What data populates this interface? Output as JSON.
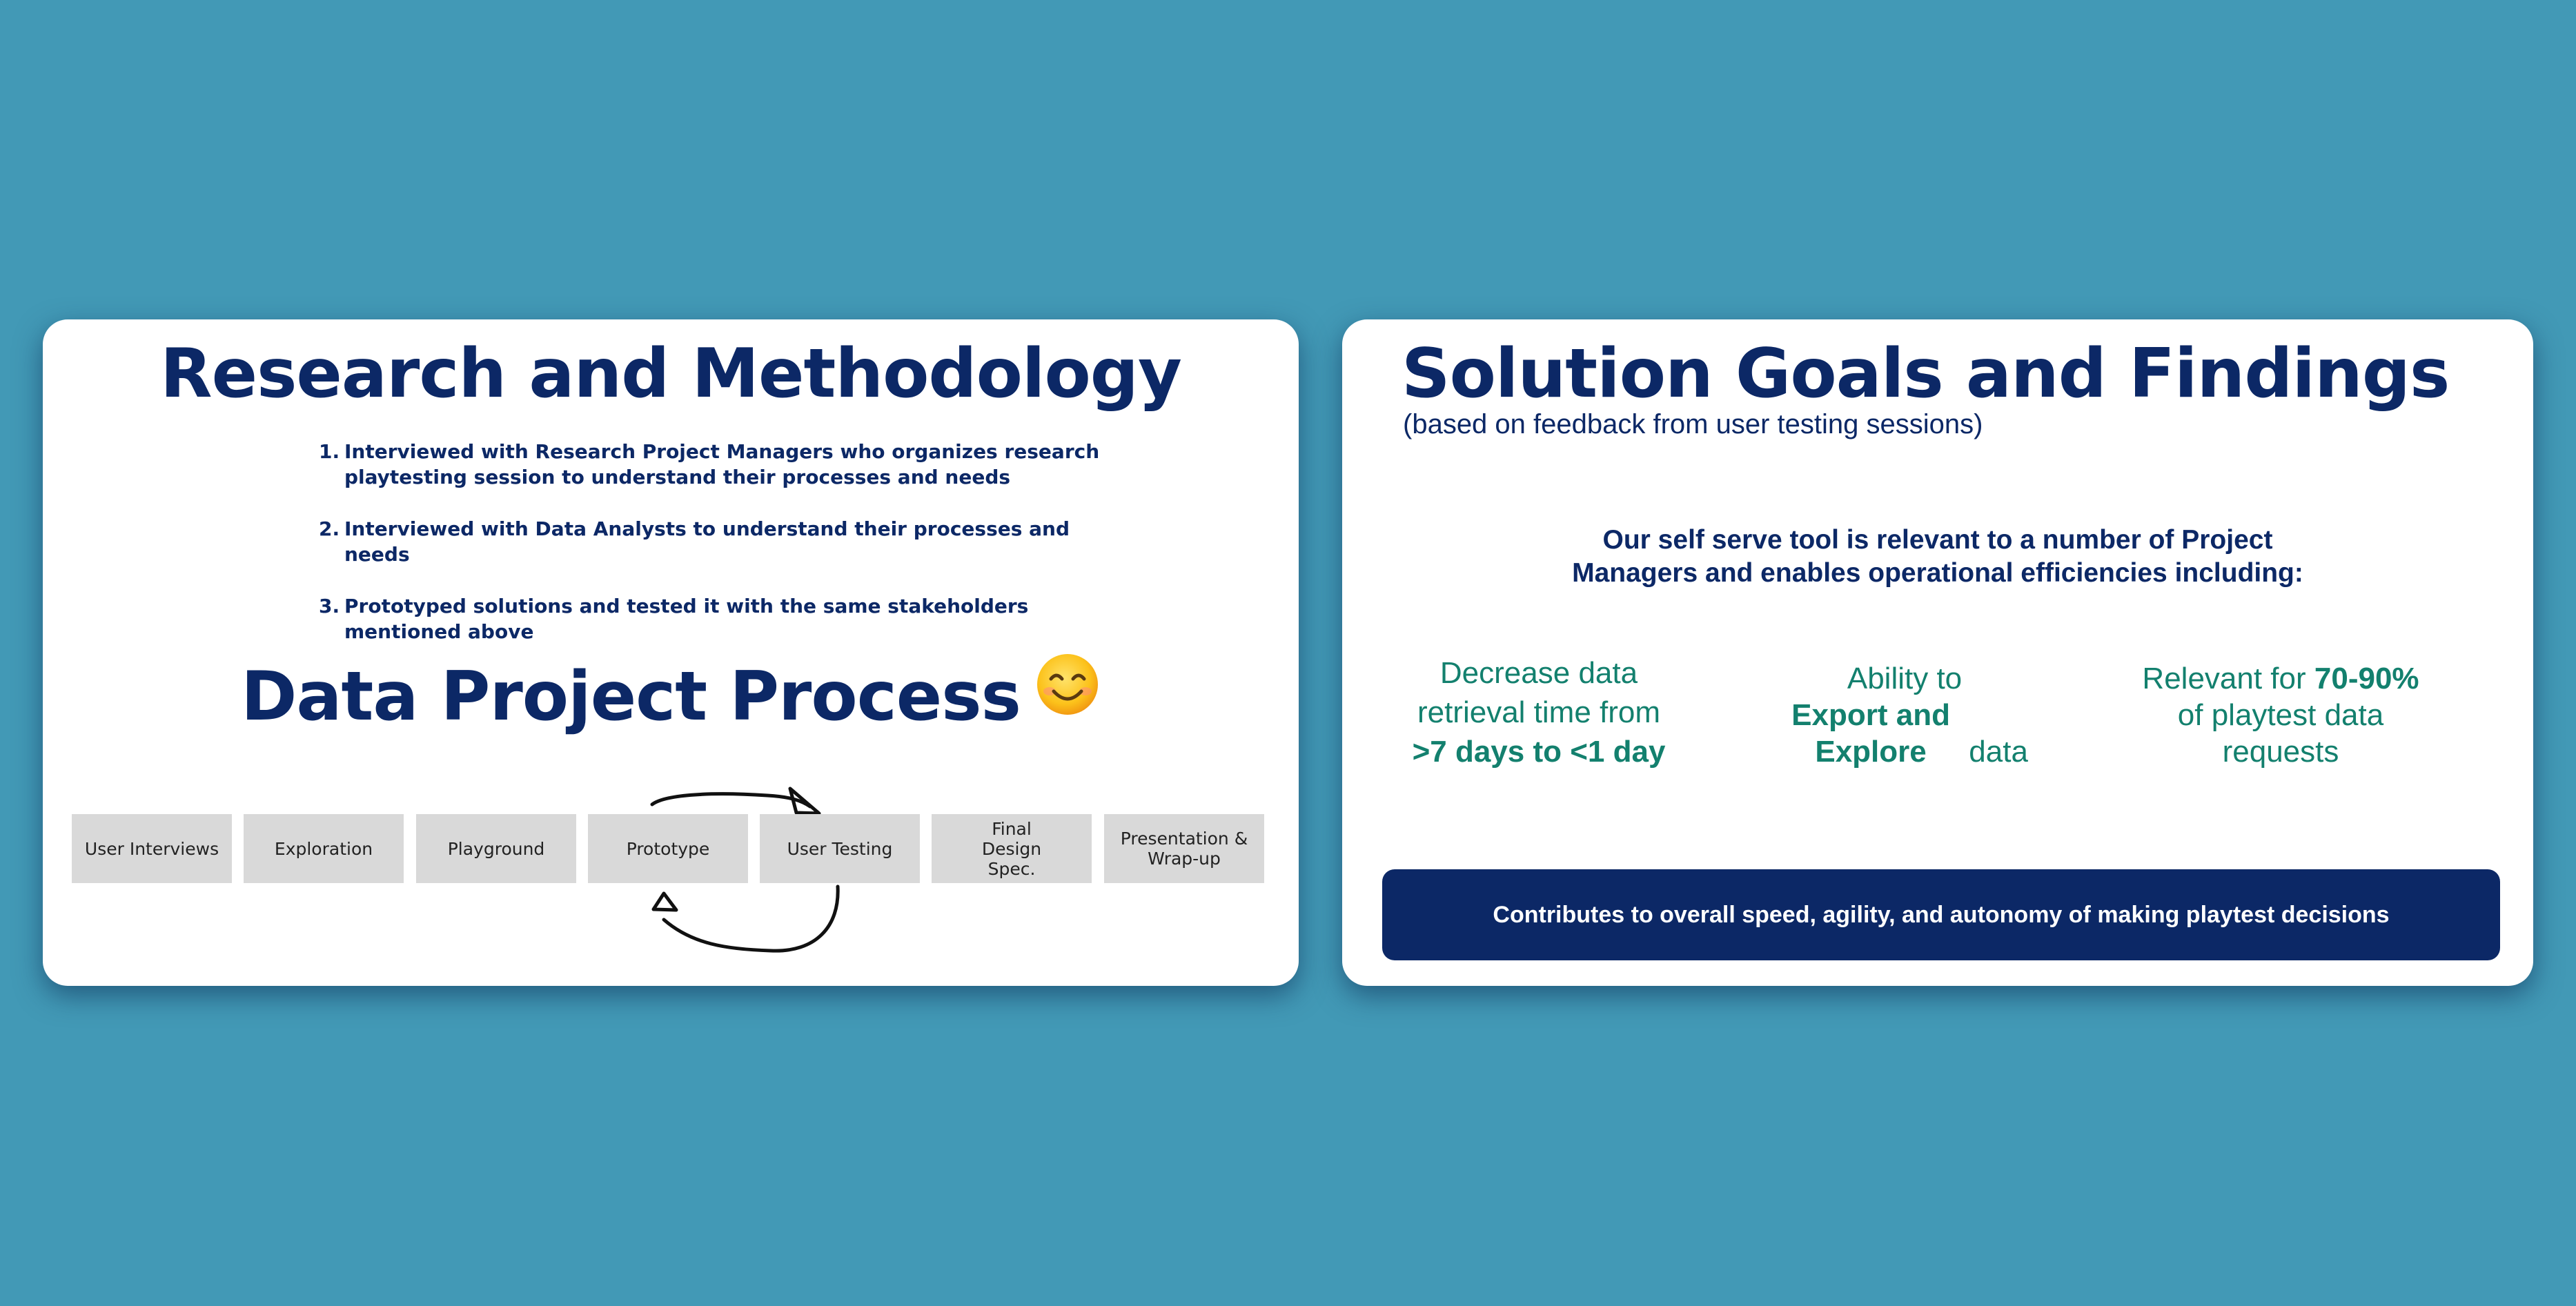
{
  "left_slide": {
    "title": "Research and Methodology",
    "methodology": [
      {
        "num": "1.",
        "text": "Interviewed with Research Project Managers who organizes research playtesting session to understand their processes and needs"
      },
      {
        "num": "2.",
        "text": "Interviewed with Data Analysts to understand their processes and needs"
      },
      {
        "num": "3.",
        "text": "Prototyped solutions and tested it with the same stakeholders mentioned above"
      }
    ],
    "process_title": "Data Project Process",
    "process_emoji_icon": "smiling-face-icon",
    "steps": [
      "User Interviews",
      "Exploration",
      "Playground",
      "Prototype",
      "User Testing",
      "Final Design Spec.",
      "Presentation & Wrap-up"
    ]
  },
  "right_slide": {
    "title": "Solution Goals and Findings",
    "subtitle": "(based on feedback from user testing sessions)",
    "intro_line1": "Our self serve tool is relevant to a number of Project",
    "intro_line2": "Managers and enables operational efficiencies including:",
    "finding1": {
      "line1": "Decrease data",
      "line2": "retrieval time from",
      "bold": ">7 days to <1 day"
    },
    "finding2": {
      "line1": "Ability to",
      "bold": "Export and Explore",
      "line3": "data"
    },
    "finding3": {
      "pre": "Relevant for",
      "bold": "70-90%",
      "line2": "of playtest data",
      "line3": "requests"
    },
    "banner": "Contributes to overall speed, agility, and autonomy of making playtest decisions"
  },
  "colors": {
    "background": "#4299b6",
    "navy": "#0c2866",
    "teal": "#13806e",
    "step_box": "#d9d9d9"
  }
}
